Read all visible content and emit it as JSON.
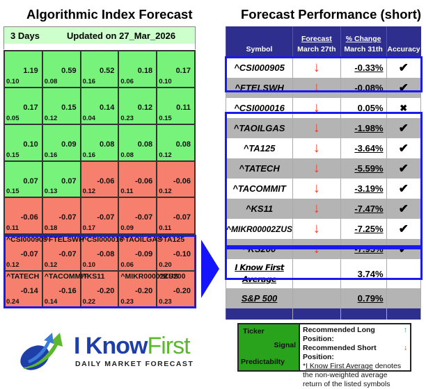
{
  "left_panel": {
    "title": "Algorithmic Index Forecast",
    "horizon": "3 Days",
    "updated": "Updated on 27_Mar_2026",
    "colors": {
      "positive": "#77f27a",
      "negative": "#f77f6d",
      "header_bar": "#ccffcc",
      "highlight": "#1a1aee"
    },
    "cells": [
      {
        "ticker": "",
        "signal": "1.19",
        "predictability": "0.10",
        "type": "pos"
      },
      {
        "ticker": "",
        "signal": "0.59",
        "predictability": "0.08",
        "type": "pos"
      },
      {
        "ticker": "",
        "signal": "0.52",
        "predictability": "0.16",
        "type": "pos"
      },
      {
        "ticker": "",
        "signal": "0.18",
        "predictability": "0.06",
        "type": "pos"
      },
      {
        "ticker": "",
        "signal": "0.17",
        "predictability": "0.10",
        "type": "pos"
      },
      {
        "ticker": "",
        "signal": "0.17",
        "predictability": "0.05",
        "type": "pos"
      },
      {
        "ticker": "",
        "signal": "0.15",
        "predictability": "0.12",
        "type": "pos"
      },
      {
        "ticker": "",
        "signal": "0.14",
        "predictability": "0.04",
        "type": "pos"
      },
      {
        "ticker": "",
        "signal": "0.12",
        "predictability": "0.23",
        "type": "pos"
      },
      {
        "ticker": "",
        "signal": "0.11",
        "predictability": "0.15",
        "type": "pos"
      },
      {
        "ticker": "",
        "signal": "0.10",
        "predictability": "0.15",
        "type": "pos"
      },
      {
        "ticker": "",
        "signal": "0.09",
        "predictability": "0.16",
        "type": "pos"
      },
      {
        "ticker": "",
        "signal": "0.08",
        "predictability": "0.16",
        "type": "pos"
      },
      {
        "ticker": "",
        "signal": "0.08",
        "predictability": "0.08",
        "type": "pos"
      },
      {
        "ticker": "",
        "signal": "0.08",
        "predictability": "0.12",
        "type": "pos"
      },
      {
        "ticker": "",
        "signal": "0.07",
        "predictability": "0.15",
        "type": "pos"
      },
      {
        "ticker": "",
        "signal": "0.07",
        "predictability": "0.13",
        "type": "pos"
      },
      {
        "ticker": "",
        "signal": "-0.06",
        "predictability": "0.12",
        "type": "neg"
      },
      {
        "ticker": "",
        "signal": "-0.06",
        "predictability": "0.11",
        "type": "neg"
      },
      {
        "ticker": "",
        "signal": "-0.06",
        "predictability": "0.12",
        "type": "neg"
      },
      {
        "ticker": "",
        "signal": "-0.06",
        "predictability": "0.11",
        "type": "neg"
      },
      {
        "ticker": "",
        "signal": "-0.07",
        "predictability": "0.18",
        "type": "neg"
      },
      {
        "ticker": "",
        "signal": "-0.07",
        "predictability": "0.17",
        "type": "neg"
      },
      {
        "ticker": "",
        "signal": "-0.07",
        "predictability": "0.09",
        "type": "neg"
      },
      {
        "ticker": "",
        "signal": "-0.07",
        "predictability": "0.11",
        "type": "neg"
      },
      {
        "ticker": "^CSI000905",
        "signal": "-0.07",
        "predictability": "0.12",
        "type": "neg"
      },
      {
        "ticker": "^FTELSWH",
        "signal": "-0.07",
        "predictability": "0.12",
        "type": "neg"
      },
      {
        "ticker": "^CSI000016",
        "signal": "-0.08",
        "predictability": "0.10",
        "type": "neg"
      },
      {
        "ticker": "^TAOILGAS",
        "signal": "-0.09",
        "predictability": "0.06",
        "type": "neg"
      },
      {
        "ticker": "^TA125",
        "signal": "-0.10",
        "predictability": "0.20",
        "type": "neg"
      },
      {
        "ticker": "^TATECH",
        "signal": "-0.14",
        "predictability": "0.24",
        "type": "neg"
      },
      {
        "ticker": "^TACOMMIT",
        "signal": "-0.16",
        "predictability": "0.14",
        "type": "neg"
      },
      {
        "ticker": "^KS11",
        "signal": "-0.20",
        "predictability": "0.22",
        "type": "neg"
      },
      {
        "ticker": "^MIKR00002ZUS",
        "signal": "-0.20",
        "predictability": "0.23",
        "type": "neg"
      },
      {
        "ticker": "^KS200",
        "signal": "-0.20",
        "predictability": "0.23",
        "type": "neg"
      }
    ]
  },
  "right_panel": {
    "title": "Forecast Performance (short)",
    "colors": {
      "header_bg": "#2e2e8e",
      "row_gray": "#b4b4b4",
      "arrow_down": "#ee3b22",
      "highlight": "#1a1aee"
    },
    "columns": {
      "symbol": "Symbol",
      "forecast_top": "Forecast",
      "forecast_bottom": "March 27th",
      "change_top": "% Change",
      "change_bottom": "March 31th",
      "accuracy": "Accuracy"
    },
    "rows": [
      {
        "symbol": "^CSI000905",
        "forecast": "↓",
        "change": "-0.33%",
        "accuracy": "✔"
      },
      {
        "symbol": "^FTELSWH",
        "forecast": "↓",
        "change": "-0.08%",
        "accuracy": "✔"
      },
      {
        "symbol": "^CSI000016",
        "forecast": "↓",
        "change": "0.05%",
        "accuracy": "✖"
      },
      {
        "symbol": "^TAOILGAS",
        "forecast": "↓",
        "change": "-1.98%",
        "accuracy": "✔"
      },
      {
        "symbol": "^TA125",
        "forecast": "↓",
        "change": "-3.64%",
        "accuracy": "✔"
      },
      {
        "symbol": "^TATECH",
        "forecast": "↓",
        "change": "-5.59%",
        "accuracy": "✔"
      },
      {
        "symbol": "^TACOMMIT",
        "forecast": "↓",
        "change": "-3.19%",
        "accuracy": "✔"
      },
      {
        "symbol": "^KS11",
        "forecast": "↓",
        "change": "-7.47%",
        "accuracy": "✔"
      },
      {
        "symbol": "^MIKR00002ZUS",
        "forecast": "↓",
        "change": "-7.25%",
        "accuracy": "✔"
      },
      {
        "symbol": "^KS200",
        "forecast": "↓",
        "change": "-7.95%",
        "accuracy": "✔"
      }
    ],
    "average": {
      "line1": "I Know First",
      "line2": "Average",
      "change": "3.74%"
    },
    "benchmark": {
      "symbol": "S&P 500",
      "change": "0.79%"
    }
  },
  "logo": {
    "word1": "I Know",
    "word2": "First",
    "tagline": "Daily Market Forecast"
  },
  "legend": {
    "ticker": "Ticker",
    "signal": "Signal",
    "predictability": "Predictabilty",
    "long_label": "Recommended Long Position:",
    "long_icon": "↑",
    "short_label": "Recommended Short Position:",
    "short_icon": "↓",
    "note_prefix": "*",
    "note_link": "I Know First Average",
    "note_rest": " denotes the non-weighted average return of the listed symbols"
  }
}
